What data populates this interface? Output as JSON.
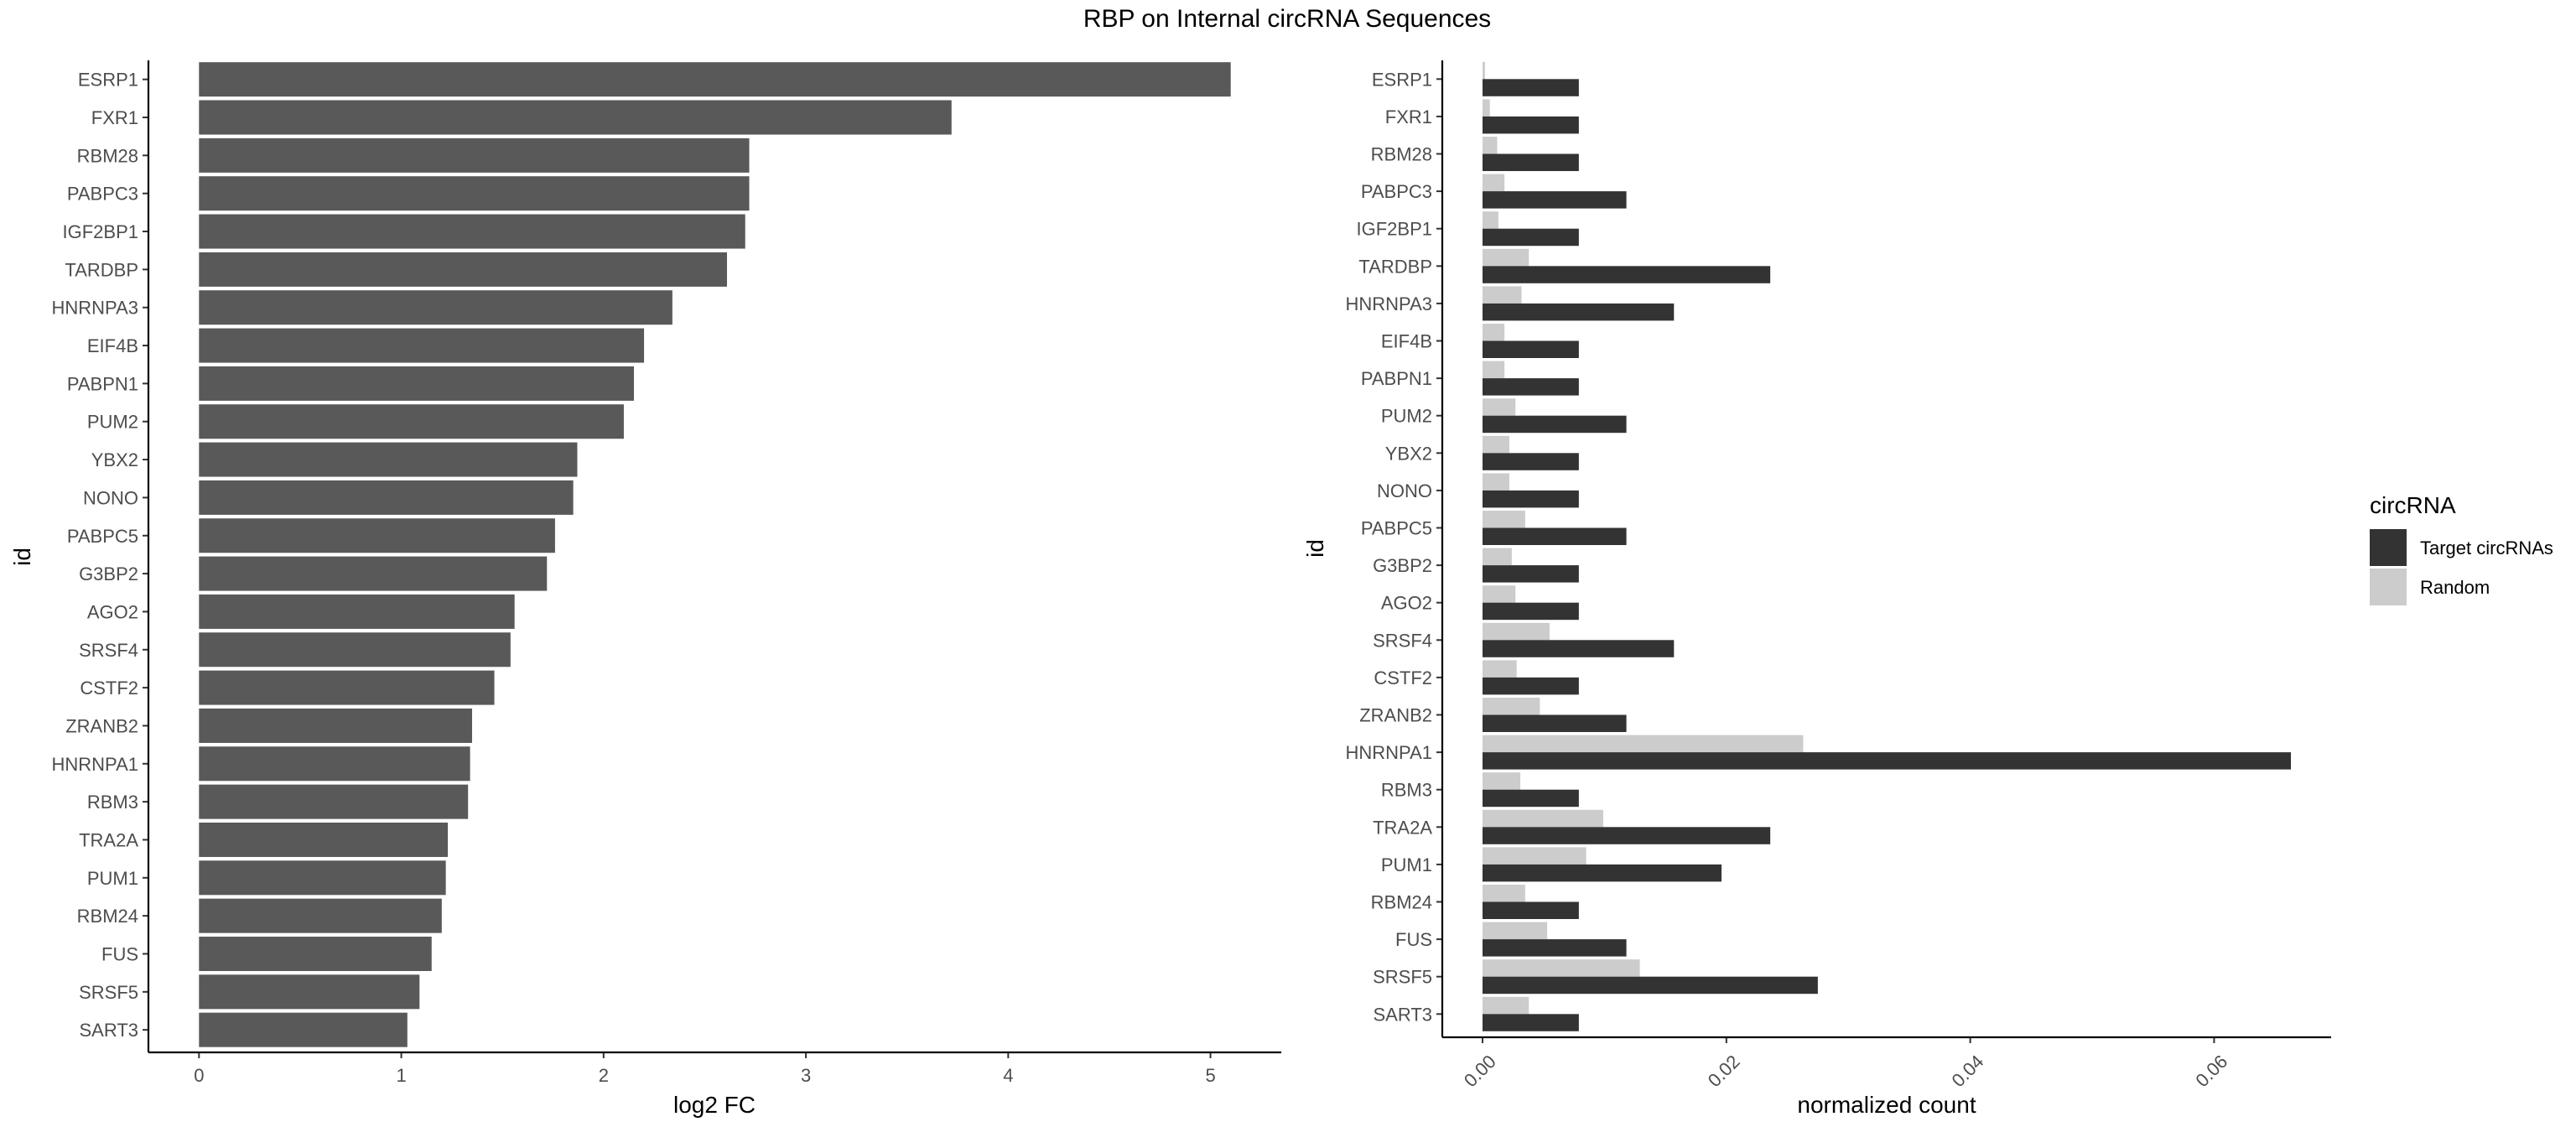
{
  "title": "RBP on Internal circRNA Sequences",
  "chart_data": [
    {
      "type": "bar",
      "orientation": "horizontal",
      "categories": [
        "ESRP1",
        "FXR1",
        "RBM28",
        "PABPC3",
        "IGF2BP1",
        "TARDBP",
        "HNRNPA3",
        "EIF4B",
        "PABPN1",
        "PUM2",
        "YBX2",
        "NONO",
        "PABPC5",
        "G3BP2",
        "AGO2",
        "SRSF4",
        "CSTF2",
        "ZRANB2",
        "HNRNPA1",
        "RBM3",
        "TRA2A",
        "PUM1",
        "RBM24",
        "FUS",
        "SRSF5",
        "SART3"
      ],
      "values": [
        5.1,
        3.72,
        2.72,
        2.72,
        2.7,
        2.61,
        2.34,
        2.2,
        2.15,
        2.1,
        1.87,
        1.85,
        1.76,
        1.72,
        1.56,
        1.54,
        1.46,
        1.35,
        1.34,
        1.33,
        1.23,
        1.22,
        1.2,
        1.15,
        1.09,
        1.03
      ],
      "xlabel": "log2 FC",
      "ylabel": "id",
      "xlim": [
        -0.25,
        5.35
      ],
      "xticks": [
        "0",
        "1",
        "2",
        "3",
        "4",
        "5"
      ],
      "grid": false,
      "bar_color": "#595959"
    },
    {
      "type": "bar",
      "orientation": "horizontal",
      "categories": [
        "ESRP1",
        "FXR1",
        "RBM28",
        "PABPC3",
        "IGF2BP1",
        "TARDBP",
        "HNRNPA3",
        "EIF4B",
        "PABPN1",
        "PUM2",
        "YBX2",
        "NONO",
        "PABPC5",
        "G3BP2",
        "AGO2",
        "SRSF4",
        "CSTF2",
        "ZRANB2",
        "HNRNPA1",
        "RBM3",
        "TRA2A",
        "PUM1",
        "RBM24",
        "FUS",
        "SRSF5",
        "SART3"
      ],
      "series": [
        {
          "name": "Target circRNAs",
          "color": "#333333",
          "values": [
            0.0079,
            0.0079,
            0.0079,
            0.0118,
            0.0079,
            0.0236,
            0.0157,
            0.0079,
            0.0079,
            0.0118,
            0.0079,
            0.0079,
            0.0118,
            0.0079,
            0.0079,
            0.0157,
            0.0079,
            0.0118,
            0.0663,
            0.0079,
            0.0236,
            0.0196,
            0.0079,
            0.0118,
            0.0275,
            0.0079
          ]
        },
        {
          "name": "Random",
          "color": "#cccccc",
          "values": [
            0.0002,
            0.0006,
            0.0012,
            0.0018,
            0.0013,
            0.0038,
            0.0032,
            0.0018,
            0.0018,
            0.0027,
            0.0022,
            0.0022,
            0.0035,
            0.0024,
            0.0027,
            0.0055,
            0.0028,
            0.0047,
            0.0263,
            0.0031,
            0.0099,
            0.0085,
            0.0035,
            0.0053,
            0.0129,
            0.0038
          ]
        }
      ],
      "xlabel": "normalized count",
      "ylabel": "id",
      "xlim": [
        -0.0033,
        0.0696
      ],
      "xticks": [
        "0.00",
        "0.02",
        "0.04",
        "0.06"
      ],
      "grid": false,
      "legend": {
        "title": "circRNA",
        "position": "right",
        "entries": [
          "Target circRNAs",
          "Random"
        ]
      }
    }
  ]
}
